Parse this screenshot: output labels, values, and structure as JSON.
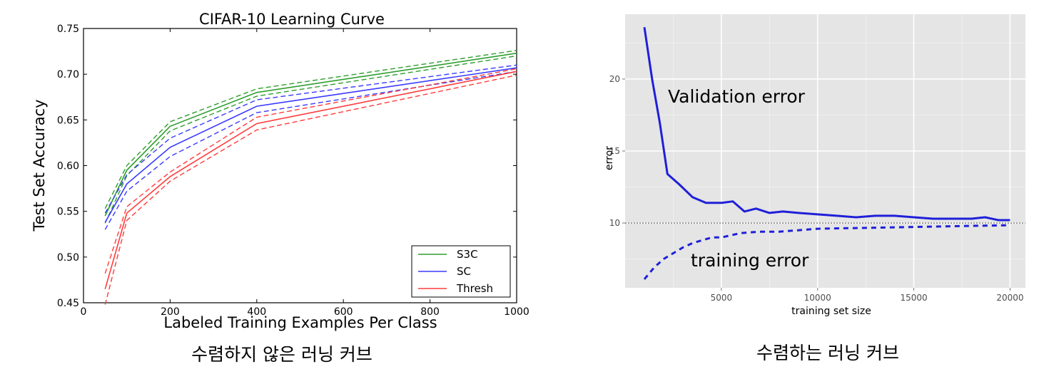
{
  "chart_data": [
    {
      "type": "line",
      "title": "CIFAR-10 Learning Curve",
      "xlabel": "Labeled Training Examples Per Class",
      "ylabel": "Test Set Accuracy",
      "xlim": [
        0,
        1000
      ],
      "ylim": [
        0.45,
        0.75
      ],
      "xticks": [
        "0",
        "200",
        "400",
        "600",
        "800",
        "1000"
      ],
      "yticks": [
        "0.45",
        "0.50",
        "0.55",
        "0.60",
        "0.65",
        "0.70",
        "0.75"
      ],
      "grid": false,
      "legend_position": "bottom-right",
      "caption": "수렴하지 않은 러닝 커브",
      "x": [
        50,
        100,
        200,
        400,
        1000
      ],
      "series": [
        {
          "name": "S3C",
          "color": "#2e9e2e",
          "values": [
            0.545,
            0.595,
            0.643,
            0.68,
            0.723
          ],
          "upper": [
            0.553,
            0.6,
            0.648,
            0.684,
            0.726
          ],
          "lower": [
            0.537,
            0.589,
            0.638,
            0.676,
            0.72
          ]
        },
        {
          "name": "SC",
          "color": "#3a3aff",
          "values": [
            0.538,
            0.58,
            0.62,
            0.665,
            0.707
          ],
          "upper": [
            0.548,
            0.59,
            0.63,
            0.672,
            0.71
          ],
          "lower": [
            0.53,
            0.572,
            0.61,
            0.658,
            0.703
          ]
        },
        {
          "name": "Thresh",
          "color": "#ff3b3b",
          "values": [
            0.465,
            0.548,
            0.588,
            0.646,
            0.703
          ],
          "upper": [
            0.482,
            0.555,
            0.593,
            0.653,
            0.706
          ],
          "lower": [
            0.448,
            0.54,
            0.583,
            0.639,
            0.699
          ]
        }
      ]
    },
    {
      "type": "line",
      "xlabel": "training set size",
      "ylabel": "error",
      "xlim": [
        0,
        20800
      ],
      "ylim": [
        5.5,
        24.5
      ],
      "xticks": [
        "5000",
        "10000",
        "15000",
        "20000"
      ],
      "yticks": [
        "10",
        "15",
        "20"
      ],
      "grid": true,
      "reference_line": 10,
      "caption": "수렴하는 러닝 커브",
      "annotations": [
        "Validation error",
        "training error"
      ],
      "series": [
        {
          "name": "Validation error",
          "style": "solid",
          "color": "#1f1fd9",
          "x": [
            1000,
            1400,
            1800,
            2200,
            2800,
            3500,
            4200,
            5000,
            5600,
            6200,
            6800,
            7500,
            8200,
            9000,
            10000,
            11000,
            12000,
            13000,
            14000,
            15000,
            16000,
            17000,
            18000,
            18700,
            19400,
            20000
          ],
          "y": [
            23.6,
            20.0,
            17.0,
            13.4,
            12.7,
            11.8,
            11.4,
            11.4,
            11.5,
            10.8,
            11.0,
            10.7,
            10.8,
            10.7,
            10.6,
            10.5,
            10.4,
            10.5,
            10.5,
            10.4,
            10.3,
            10.3,
            10.3,
            10.4,
            10.2,
            10.2
          ]
        },
        {
          "name": "training error",
          "style": "dashed",
          "color": "#1f1fd9",
          "x": [
            1000,
            1500,
            2000,
            2500,
            3000,
            3500,
            4000,
            4500,
            5000,
            6000,
            7000,
            8000,
            9000,
            10000,
            12000,
            14000,
            16000,
            18000,
            20000
          ],
          "y": [
            6.1,
            6.9,
            7.5,
            7.9,
            8.3,
            8.6,
            8.8,
            9.0,
            9.0,
            9.3,
            9.4,
            9.4,
            9.5,
            9.6,
            9.65,
            9.7,
            9.75,
            9.8,
            9.85
          ]
        }
      ]
    }
  ]
}
